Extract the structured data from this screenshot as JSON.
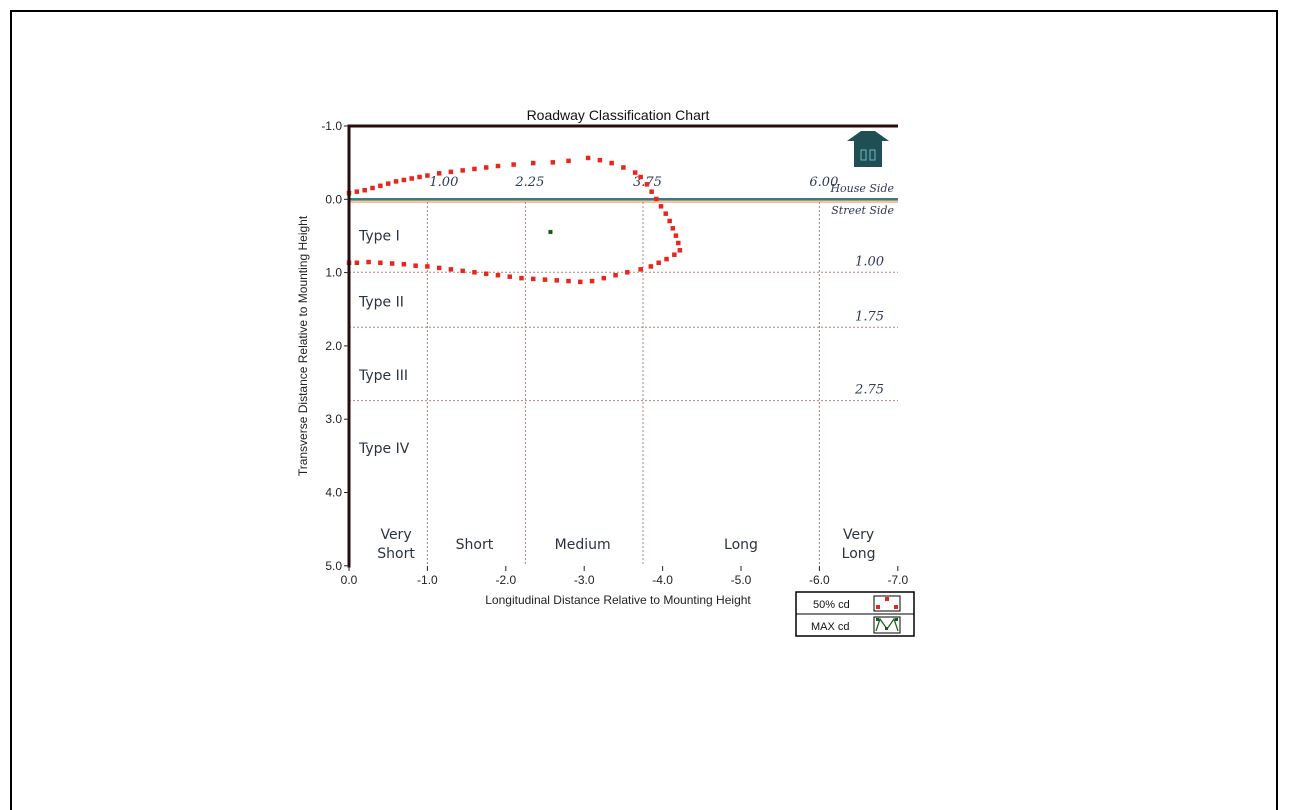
{
  "chart_data": {
    "type": "scatter",
    "title": "Roadway Classification Chart",
    "xlabel": "Longitudinal Distance Relative to Mounting Height",
    "ylabel": "Transverse Distance Relative to Mounting Height",
    "xlim": [
      0.0,
      -7.0
    ],
    "ylim": [
      -1.0,
      5.0
    ],
    "x_ticks": [
      "0.0",
      "-1.0",
      "-2.0",
      "-3.0",
      "-4.0",
      "-5.0",
      "-6.0",
      "-7.0"
    ],
    "y_ticks": [
      "-1.0",
      "0.0",
      "1.0",
      "2.0",
      "3.0",
      "4.0",
      "5.0"
    ],
    "vertical_refs": [
      {
        "x": -1.0,
        "label": "1.00"
      },
      {
        "x": -2.25,
        "label": "2.25"
      },
      {
        "x": -3.75,
        "label": "3.75"
      },
      {
        "x": -6.0,
        "label": "6.00"
      }
    ],
    "horizontal_refs": [
      {
        "y": 1.0,
        "label": "1.00"
      },
      {
        "y": 1.75,
        "label": "1.75"
      },
      {
        "y": 2.75,
        "label": "2.75"
      }
    ],
    "side_labels": {
      "house": "House Side",
      "street": "Street Side"
    },
    "type_labels": [
      {
        "label": "Type I",
        "y": 0.5
      },
      {
        "label": "Type II",
        "y": 1.4
      },
      {
        "label": "Type III",
        "y": 2.4
      },
      {
        "label": "Type IV",
        "y": 3.4
      }
    ],
    "length_labels": [
      {
        "lines": [
          "Very",
          "Short"
        ],
        "x": -0.6
      },
      {
        "lines": [
          "Short"
        ],
        "x": -1.6
      },
      {
        "lines": [
          "Medium"
        ],
        "x": -2.98
      },
      {
        "lines": [
          "Long"
        ],
        "x": -5.0
      },
      {
        "lines": [
          "Very",
          "Long"
        ],
        "x": -6.5
      }
    ],
    "series": [
      {
        "name": "50% cd",
        "color": "#e8261d",
        "points": [
          [
            0.0,
            -0.08
          ],
          [
            -0.1,
            -0.1
          ],
          [
            -0.2,
            -0.12
          ],
          [
            -0.3,
            -0.15
          ],
          [
            -0.4,
            -0.18
          ],
          [
            -0.5,
            -0.21
          ],
          [
            -0.6,
            -0.24
          ],
          [
            -0.7,
            -0.26
          ],
          [
            -0.8,
            -0.28
          ],
          [
            -0.9,
            -0.3
          ],
          [
            -1.0,
            -0.32
          ],
          [
            -1.15,
            -0.35
          ],
          [
            -1.3,
            -0.37
          ],
          [
            -1.45,
            -0.39
          ],
          [
            -1.6,
            -0.41
          ],
          [
            -1.75,
            -0.43
          ],
          [
            -1.9,
            -0.45
          ],
          [
            -2.1,
            -0.47
          ],
          [
            -2.35,
            -0.49
          ],
          [
            -2.6,
            -0.5
          ],
          [
            -2.8,
            -0.52
          ],
          [
            -3.05,
            -0.56
          ],
          [
            -3.2,
            -0.53
          ],
          [
            -3.35,
            -0.49
          ],
          [
            -3.5,
            -0.43
          ],
          [
            -3.65,
            -0.36
          ],
          [
            -3.72,
            -0.3
          ],
          [
            -3.8,
            -0.2
          ],
          [
            -3.86,
            -0.1
          ],
          [
            -3.92,
            0.0
          ],
          [
            -3.98,
            0.1
          ],
          [
            -4.04,
            0.2
          ],
          [
            -4.09,
            0.3
          ],
          [
            -4.13,
            0.4
          ],
          [
            -4.17,
            0.5
          ],
          [
            -4.2,
            0.6
          ],
          [
            -4.22,
            0.7
          ],
          [
            -4.15,
            0.76
          ],
          [
            -4.05,
            0.82
          ],
          [
            -3.95,
            0.87
          ],
          [
            -3.85,
            0.92
          ],
          [
            -3.72,
            0.96
          ],
          [
            -3.55,
            1.0
          ],
          [
            -3.4,
            1.04
          ],
          [
            -3.25,
            1.08
          ],
          [
            -3.1,
            1.12
          ],
          [
            -2.95,
            1.13
          ],
          [
            -2.8,
            1.12
          ],
          [
            -2.65,
            1.11
          ],
          [
            -2.5,
            1.1
          ],
          [
            -2.35,
            1.09
          ],
          [
            -2.2,
            1.08
          ],
          [
            -2.05,
            1.06
          ],
          [
            -1.9,
            1.04
          ],
          [
            -1.75,
            1.02
          ],
          [
            -1.6,
            1.0
          ],
          [
            -1.45,
            0.98
          ],
          [
            -1.3,
            0.96
          ],
          [
            -1.15,
            0.94
          ],
          [
            -1.0,
            0.92
          ],
          [
            -0.85,
            0.91
          ],
          [
            -0.7,
            0.89
          ],
          [
            -0.55,
            0.88
          ],
          [
            -0.4,
            0.87
          ],
          [
            -0.25,
            0.86
          ],
          [
            -0.1,
            0.87
          ],
          [
            0.0,
            0.87
          ]
        ]
      },
      {
        "name": "MAX cd",
        "color": "#1a5a1a",
        "points": [
          [
            -2.57,
            0.45
          ]
        ]
      }
    ],
    "legend": {
      "position": "bottom-right",
      "entries": [
        "50% cd",
        "MAX cd"
      ]
    },
    "grid": false
  }
}
